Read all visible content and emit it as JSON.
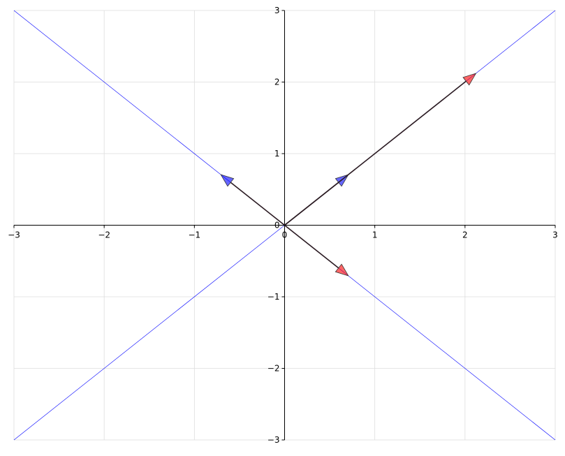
{
  "chart_data": {
    "type": "line",
    "title": "",
    "xlabel": "",
    "ylabel": "",
    "xlim": [
      -3,
      3
    ],
    "ylim": [
      -3,
      3
    ],
    "grid": true,
    "spines": "centered at origin",
    "x_ticks": [
      "−3",
      "−2",
      "−1",
      "0",
      "1",
      "2",
      "3"
    ],
    "y_ticks": [
      "−3",
      "−2",
      "−1",
      "0",
      "1",
      "2",
      "3"
    ],
    "x_tick_values": [
      -3,
      -2,
      -1,
      0,
      1,
      2,
      3
    ],
    "y_tick_values": [
      -3,
      -2,
      -1,
      0,
      1,
      2,
      3
    ],
    "lines": [
      {
        "slope": 1,
        "color": "#0000ff"
      },
      {
        "slope": -1,
        "color": "#0000ff"
      }
    ],
    "vectors": [
      {
        "from": [
          0,
          0
        ],
        "to": [
          0.707,
          0.707
        ],
        "head_color": "#0000ff"
      },
      {
        "from": [
          0,
          0
        ],
        "to": [
          -0.707,
          0.707
        ],
        "head_color": "#0000ff"
      },
      {
        "from": [
          0,
          0
        ],
        "to": [
          2.121,
          2.121
        ],
        "head_color": "#ff0000"
      },
      {
        "from": [
          0,
          0
        ],
        "to": [
          0.707,
          -0.707
        ],
        "head_color": "#ff0000"
      }
    ],
    "shaft_color": "#2a1a22",
    "grid_color": "#dddddd"
  }
}
